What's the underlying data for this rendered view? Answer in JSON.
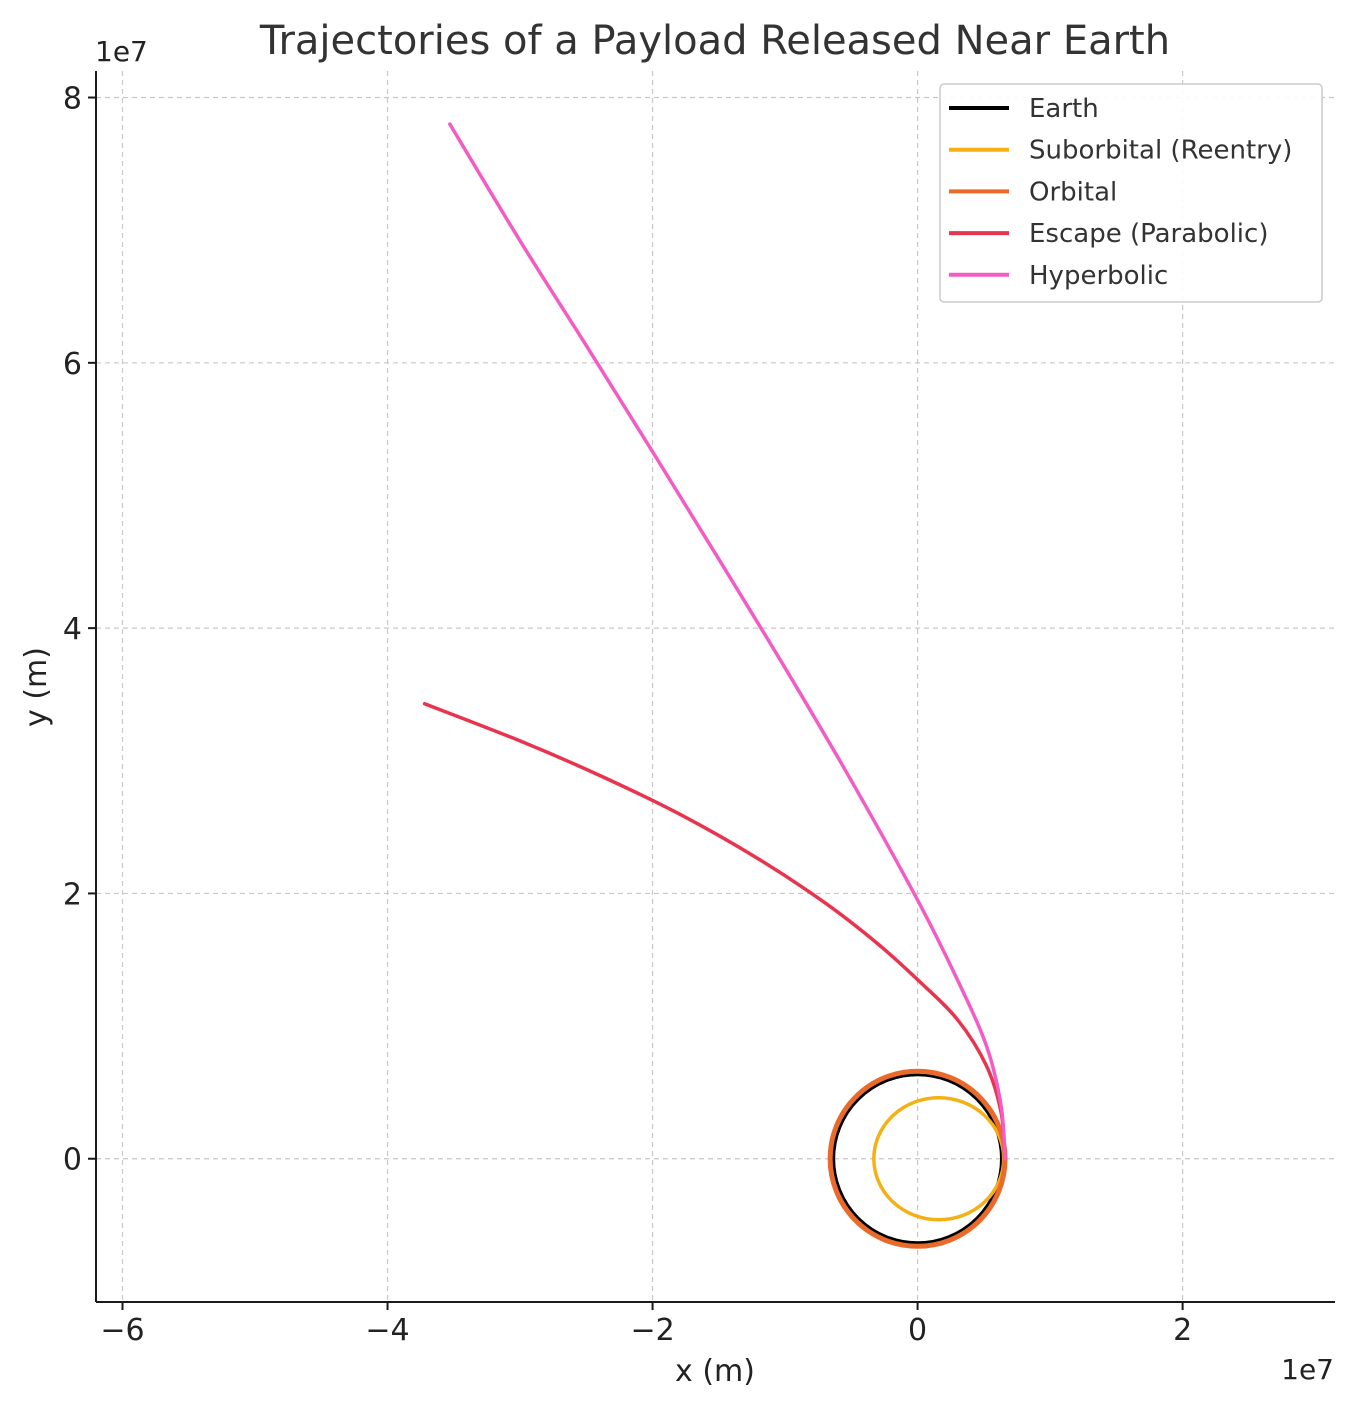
{
  "chart_data": {
    "type": "line",
    "title": "Trajectories of a Payload Released Near Earth",
    "xlabel": "x (m)",
    "ylabel": "y (m)",
    "x_offset_label": "1e7",
    "y_offset_label": "1e7",
    "xlim": [
      -62000000.0,
      31500000.0
    ],
    "ylim": [
      -10800000.0,
      82000000.0
    ],
    "x_ticks": [
      -60000000.0,
      -40000000.0,
      -20000000.0,
      0,
      20000000.0
    ],
    "x_tick_labels": [
      "−6",
      "−4",
      "−2",
      "0",
      "2"
    ],
    "y_ticks": [
      0,
      20000000.0,
      40000000.0,
      60000000.0,
      80000000.0
    ],
    "y_tick_labels": [
      "0",
      "2",
      "4",
      "6",
      "8"
    ],
    "grid": true,
    "legend_position": "top-right",
    "series": [
      {
        "name": "Earth",
        "color": "#000000",
        "kind": "circle",
        "center": [
          0,
          0
        ],
        "radius": 6371000.0
      },
      {
        "name": "Suborbital (Reentry)",
        "color": "#f5b014",
        "kind": "ellipse",
        "center": [
          1600000.0,
          0
        ],
        "rx": 4900000.0,
        "ry": 4600000.0
      },
      {
        "name": "Orbital",
        "color": "#ea6a2c",
        "kind": "circle",
        "center": [
          0,
          0
        ],
        "radius": 6600000.0
      },
      {
        "name": "Escape (Parabolic)",
        "color": "#e8344e",
        "kind": "path",
        "x": [
          6600000.0,
          6300000.0,
          5200000.0,
          3000000.0,
          0,
          -3000000.0,
          -7000000.0,
          -12000000.0,
          -18000000.0,
          -24000000.0,
          -30000000.0,
          -37200000.0
        ],
        "y": [
          0,
          3500000.0,
          7000000.0,
          10500000.0,
          13500000.0,
          16200000.0,
          19300000.0,
          22600000.0,
          26000000.0,
          28900000.0,
          31500000.0,
          34300000.0
        ]
      },
      {
        "name": "Hyperbolic",
        "color": "#f25cc4",
        "kind": "path",
        "x": [
          6600000.0,
          6300000.0,
          5200000.0,
          3000000.0,
          0,
          -5000000.0,
          -10000000.0,
          -15000000.0,
          -20000000.0,
          -25000000.0,
          -30000000.0,
          -35300000.0
        ],
        "y": [
          0,
          4000000.0,
          8500000.0,
          13500000.0,
          19500000.0,
          28500000.0,
          37000000.0,
          45200000.0,
          53300000.0,
          61300000.0,
          69200000.0,
          78000000.0
        ]
      }
    ]
  }
}
